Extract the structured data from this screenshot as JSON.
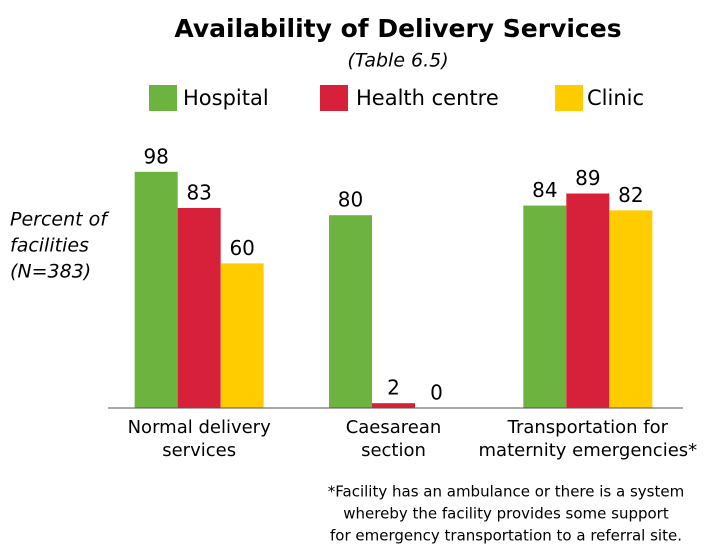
{
  "chart_data": {
    "type": "bar",
    "title": "Availability of Delivery Services",
    "subtitle": "(Table 6.5)",
    "y_label": [
      "Percent of",
      "facilities",
      "(N=383)"
    ],
    "categories": [
      [
        "Normal delivery",
        "services"
      ],
      [
        "Caesarean",
        "section"
      ],
      [
        "Transportation for",
        "maternity emergencies*"
      ]
    ],
    "series": [
      {
        "name": "Hospital",
        "color": "#6db33f",
        "values": [
          98,
          80,
          84
        ]
      },
      {
        "name": "Health centre",
        "color": "#d7213a",
        "values": [
          83,
          2,
          89
        ]
      },
      {
        "name": "Clinic",
        "color": "#ffcc00",
        "values": [
          60,
          0,
          82
        ]
      }
    ],
    "ylim": [
      0,
      100
    ],
    "footnote": [
      "*Facility has an ambulance or there is a system",
      "whereby the facility provides some support",
      "for emergency transportation to a referral site."
    ]
  }
}
